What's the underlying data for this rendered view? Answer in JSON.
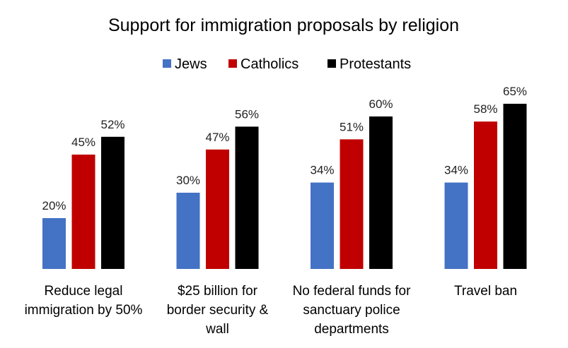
{
  "chart_data": {
    "type": "bar",
    "title": "Support for immigration proposals by religion",
    "categories": [
      [
        "Reduce legal",
        "immigration by 50%"
      ],
      [
        "$25 billion for",
        "border security &",
        "wall"
      ],
      [
        "No federal funds for",
        "sanctuary police",
        "departments"
      ],
      [
        "Travel ban"
      ]
    ],
    "series": [
      {
        "name": "Jews",
        "color": "#4472C4",
        "values": [
          20,
          30,
          34,
          34
        ]
      },
      {
        "name": "Catholics",
        "color": "#C00000",
        "values": [
          45,
          47,
          51,
          58
        ]
      },
      {
        "name": "Protestants",
        "color": "#000000",
        "values": [
          52,
          56,
          60,
          65
        ]
      }
    ],
    "value_suffix": "%",
    "ylim": [
      0,
      65
    ],
    "legend_position": "top",
    "grid": false
  }
}
